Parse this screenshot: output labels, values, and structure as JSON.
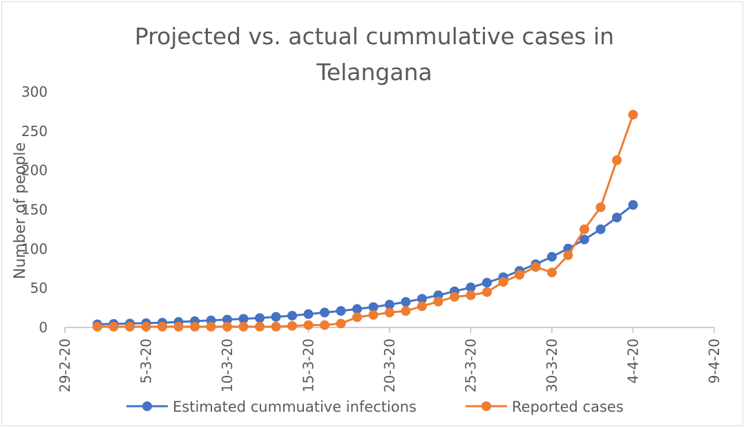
{
  "chart_data": {
    "type": "line",
    "title_lines": [
      "Projected vs. actual cummulative cases in",
      "Telangana"
    ],
    "ylabel": "Number of people",
    "xlabel": "",
    "ylim": [
      0,
      300
    ],
    "yticks": [
      "0",
      "50",
      "100",
      "150",
      "200",
      "250",
      "300"
    ],
    "xticks": [
      "29-2-20",
      "5-3-20",
      "10-3-20",
      "15-3-20",
      "20-3-20",
      "25-3-20",
      "30-3-20",
      "4-4-20",
      "9-4-20"
    ],
    "x_day_range": [
      0,
      40
    ],
    "x_day_start": 2,
    "series": [
      {
        "name": "Estimated cummuative infections",
        "color": "#4472c4",
        "values": [
          4,
          4.5,
          5,
          5.5,
          6,
          7,
          8,
          9,
          10,
          11,
          12,
          13.5,
          15,
          17,
          19,
          21,
          23.5,
          26,
          29,
          32.5,
          36.5,
          41,
          46,
          51,
          57,
          64,
          72,
          80.5,
          90,
          100.5,
          112,
          125,
          140,
          156
        ]
      },
      {
        "name": "Reported cases",
        "color": "#ed7d31",
        "values": [
          1,
          1,
          1,
          1,
          1,
          1,
          1,
          1,
          1,
          1,
          1,
          1,
          2,
          3,
          3,
          5,
          13,
          16,
          19,
          21,
          27,
          33,
          39,
          41,
          45,
          58,
          67,
          77,
          70,
          92,
          125,
          153,
          213,
          271
        ]
      }
    ],
    "legend_position": "bottom"
  }
}
